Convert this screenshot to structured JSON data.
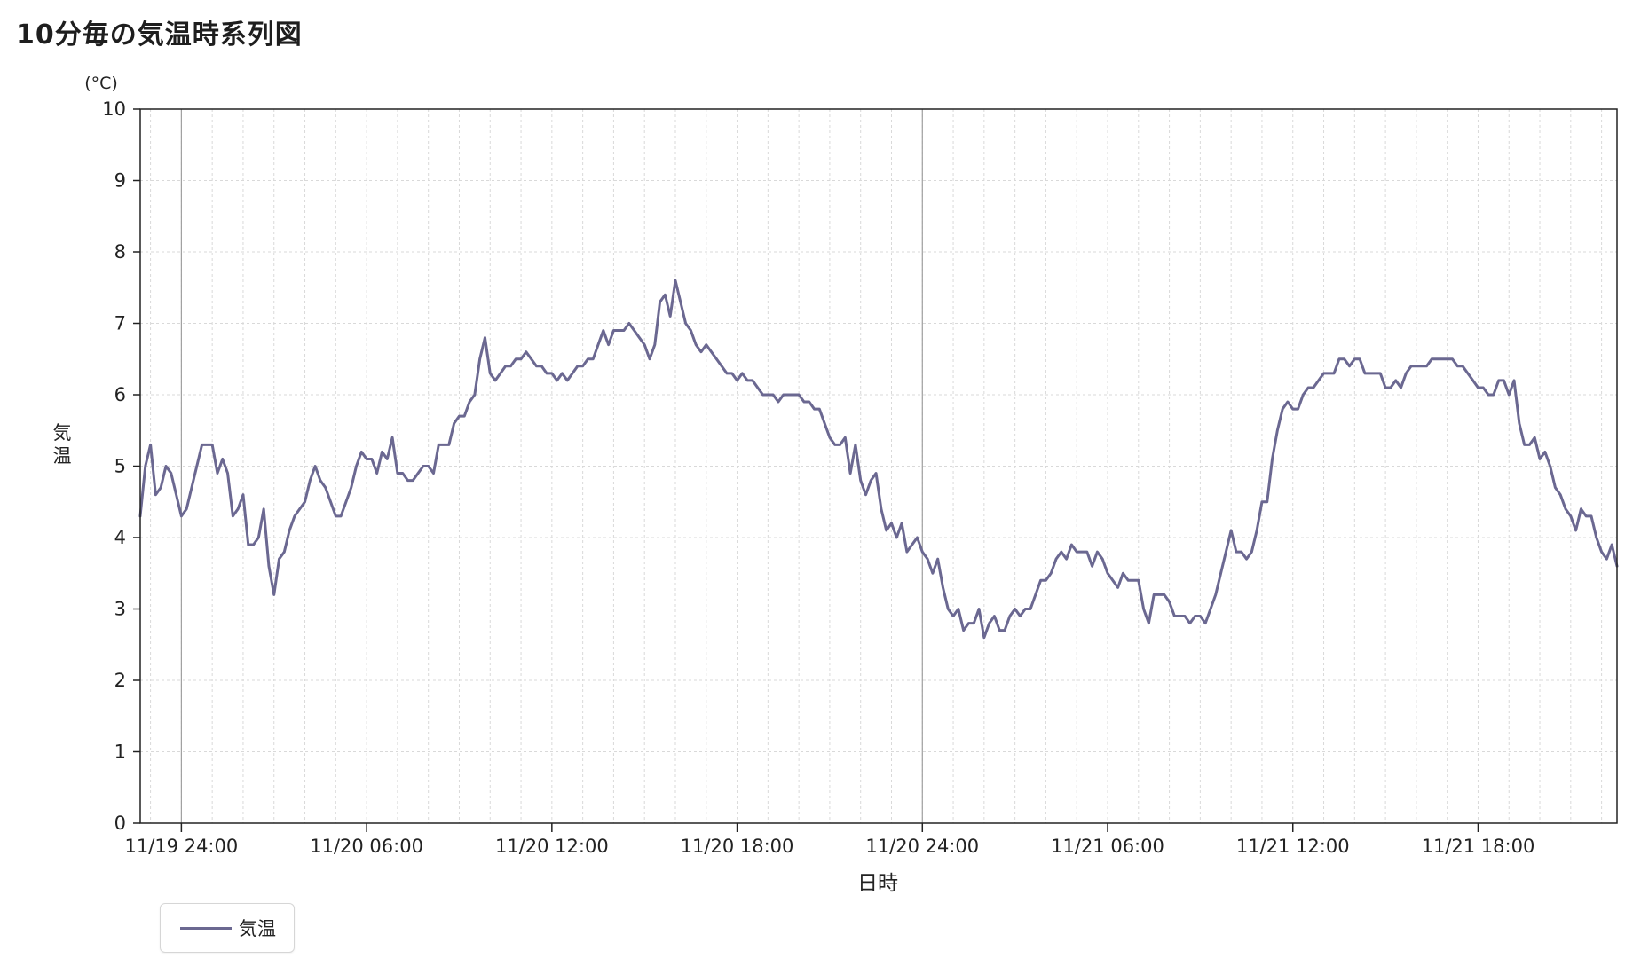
{
  "title": "10分毎の気温時系列図",
  "colors": {
    "line": "#6b6891",
    "axis": "#222222",
    "grid": "#d9d9d9",
    "day_divider": "#a0a0a0"
  },
  "legend": {
    "label": "気温",
    "placement": "bottom-left"
  },
  "chart_data": {
    "type": "line",
    "ylabel": "気温",
    "yunit": "(°C)",
    "xlabel": "日時",
    "ylim": [
      0,
      10
    ],
    "yticks": [
      0,
      1,
      2,
      3,
      4,
      5,
      6,
      7,
      8,
      9,
      10
    ],
    "xlim": [
      "11/19 22:40",
      "11/21 22:30"
    ],
    "xticks": [
      "11/19 24:00",
      "11/20 06:00",
      "11/20 12:00",
      "11/20 18:00",
      "11/20 24:00",
      "11/21 06:00",
      "11/21 12:00",
      "11/21 18:00"
    ],
    "day_dividers": [
      "11/19 24:00",
      "11/20 24:00"
    ],
    "grid": true,
    "minor_grid_interval_minutes": 60,
    "sampling_interval_minutes": 10,
    "series": [
      {
        "name": "気温",
        "x_start": "11/19 22:40",
        "values": [
          4.3,
          5.0,
          5.3,
          4.6,
          4.7,
          5.0,
          4.9,
          4.6,
          4.3,
          4.4,
          4.7,
          5.0,
          5.3,
          5.3,
          5.3,
          4.9,
          5.1,
          4.9,
          4.3,
          4.4,
          4.6,
          3.9,
          3.9,
          4.0,
          4.4,
          3.6,
          3.2,
          3.7,
          3.8,
          4.1,
          4.3,
          4.4,
          4.5,
          4.8,
          5.0,
          4.8,
          4.7,
          4.5,
          4.3,
          4.3,
          4.5,
          4.7,
          5.0,
          5.2,
          5.1,
          5.1,
          4.9,
          5.2,
          5.1,
          5.4,
          4.9,
          4.9,
          4.8,
          4.8,
          4.9,
          5.0,
          5.0,
          4.9,
          5.3,
          5.3,
          5.3,
          5.6,
          5.7,
          5.7,
          5.9,
          6.0,
          6.5,
          6.8,
          6.3,
          6.2,
          6.3,
          6.4,
          6.4,
          6.5,
          6.5,
          6.6,
          6.5,
          6.4,
          6.4,
          6.3,
          6.3,
          6.2,
          6.3,
          6.2,
          6.3,
          6.4,
          6.4,
          6.5,
          6.5,
          6.7,
          6.9,
          6.7,
          6.9,
          6.9,
          6.9,
          7.0,
          6.9,
          6.8,
          6.7,
          6.5,
          6.7,
          7.3,
          7.4,
          7.1,
          7.6,
          7.3,
          7.0,
          6.9,
          6.7,
          6.6,
          6.7,
          6.6,
          6.5,
          6.4,
          6.3,
          6.3,
          6.2,
          6.3,
          6.2,
          6.2,
          6.1,
          6.0,
          6.0,
          6.0,
          5.9,
          6.0,
          6.0,
          6.0,
          6.0,
          5.9,
          5.9,
          5.8,
          5.8,
          5.6,
          5.4,
          5.3,
          5.3,
          5.4,
          4.9,
          5.3,
          4.8,
          4.6,
          4.8,
          4.9,
          4.4,
          4.1,
          4.2,
          4.0,
          4.2,
          3.8,
          3.9,
          4.0,
          3.8,
          3.7,
          3.5,
          3.7,
          3.3,
          3.0,
          2.9,
          3.0,
          2.7,
          2.8,
          2.8,
          3.0,
          2.6,
          2.8,
          2.9,
          2.7,
          2.7,
          2.9,
          3.0,
          2.9,
          3.0,
          3.0,
          3.2,
          3.4,
          3.4,
          3.5,
          3.7,
          3.8,
          3.7,
          3.9,
          3.8,
          3.8,
          3.8,
          3.6,
          3.8,
          3.7,
          3.5,
          3.4,
          3.3,
          3.5,
          3.4,
          3.4,
          3.4,
          3.0,
          2.8,
          3.2,
          3.2,
          3.2,
          3.1,
          2.9,
          2.9,
          2.9,
          2.8,
          2.9,
          2.9,
          2.8,
          3.0,
          3.2,
          3.5,
          3.8,
          4.1,
          3.8,
          3.8,
          3.7,
          3.8,
          4.1,
          4.5,
          4.5,
          5.1,
          5.5,
          5.8,
          5.9,
          5.8,
          5.8,
          6.0,
          6.1,
          6.1,
          6.2,
          6.3,
          6.3,
          6.3,
          6.5,
          6.5,
          6.4,
          6.5,
          6.5,
          6.3,
          6.3,
          6.3,
          6.3,
          6.1,
          6.1,
          6.2,
          6.1,
          6.3,
          6.4,
          6.4,
          6.4,
          6.4,
          6.5,
          6.5,
          6.5,
          6.5,
          6.5,
          6.4,
          6.4,
          6.3,
          6.2,
          6.1,
          6.1,
          6.0,
          6.0,
          6.2,
          6.2,
          6.0,
          6.2,
          5.6,
          5.3,
          5.3,
          5.4,
          5.1,
          5.2,
          5.0,
          4.7,
          4.6,
          4.4,
          4.3,
          4.1,
          4.4,
          4.3,
          4.3,
          4.0,
          3.8,
          3.7,
          3.9,
          3.6
        ]
      }
    ]
  }
}
